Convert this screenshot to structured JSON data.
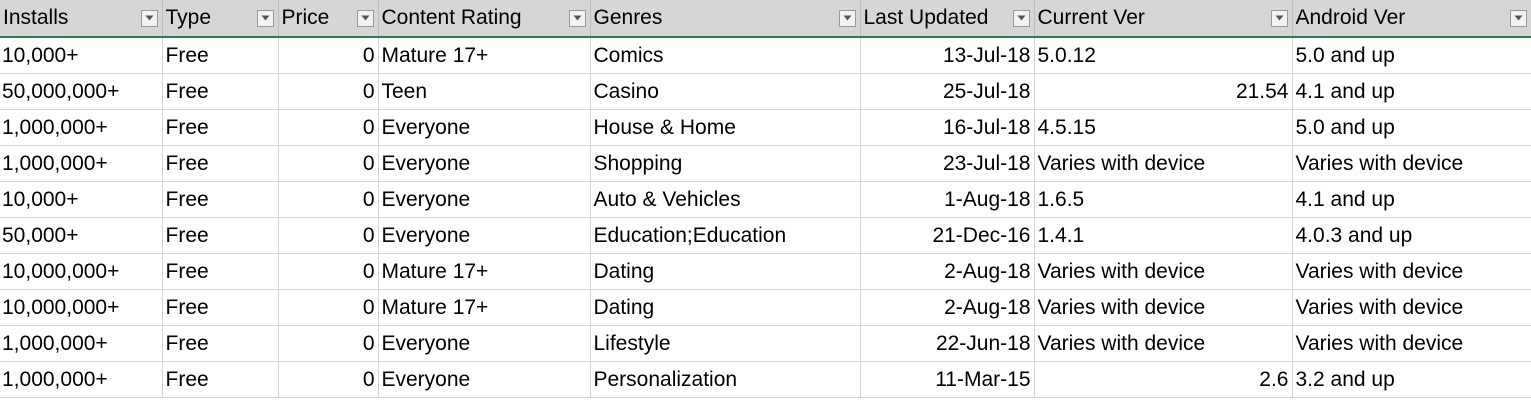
{
  "headers": [
    "Installs",
    "Type",
    "Price",
    "Content Rating",
    "Genres",
    "Last Updated",
    "Current Ver",
    "Android Ver"
  ],
  "filter_icon": "filter-dropdown-arrow-icon",
  "colors": {
    "header_bg": "#d6d6d6",
    "header_border": "#2e7d4f",
    "gridline": "#d4d4d4"
  },
  "rows": [
    [
      "10,000+",
      "Free",
      "0",
      "Mature 17+",
      "Comics",
      "13-Jul-18",
      "5.0.12",
      "5.0 and up"
    ],
    [
      "50,000,000+",
      "Free",
      "0",
      "Teen",
      "Casino",
      "25-Jul-18",
      "21.54",
      "4.1 and up"
    ],
    [
      "1,000,000+",
      "Free",
      "0",
      "Everyone",
      "House & Home",
      "16-Jul-18",
      "4.5.15",
      "5.0 and up"
    ],
    [
      "1,000,000+",
      "Free",
      "0",
      "Everyone",
      "Shopping",
      "23-Jul-18",
      "Varies with device",
      "Varies with device"
    ],
    [
      "10,000+",
      "Free",
      "0",
      "Everyone",
      "Auto & Vehicles",
      "1-Aug-18",
      "1.6.5",
      "4.1 and up"
    ],
    [
      "50,000+",
      "Free",
      "0",
      "Everyone",
      "Education;Education",
      "21-Dec-16",
      "1.4.1",
      "4.0.3 and up"
    ],
    [
      "10,000,000+",
      "Free",
      "0",
      "Mature 17+",
      "Dating",
      "2-Aug-18",
      "Varies with device",
      "Varies with device"
    ],
    [
      "10,000,000+",
      "Free",
      "0",
      "Mature 17+",
      "Dating",
      "2-Aug-18",
      "Varies with device",
      "Varies with device"
    ],
    [
      "1,000,000+",
      "Free",
      "0",
      "Everyone",
      "Lifestyle",
      "22-Jun-18",
      "Varies with device",
      "Varies with device"
    ],
    [
      "1,000,000+",
      "Free",
      "0",
      "Everyone",
      "Personalization",
      "11-Mar-15",
      "2.6",
      "3.2 and up"
    ]
  ]
}
